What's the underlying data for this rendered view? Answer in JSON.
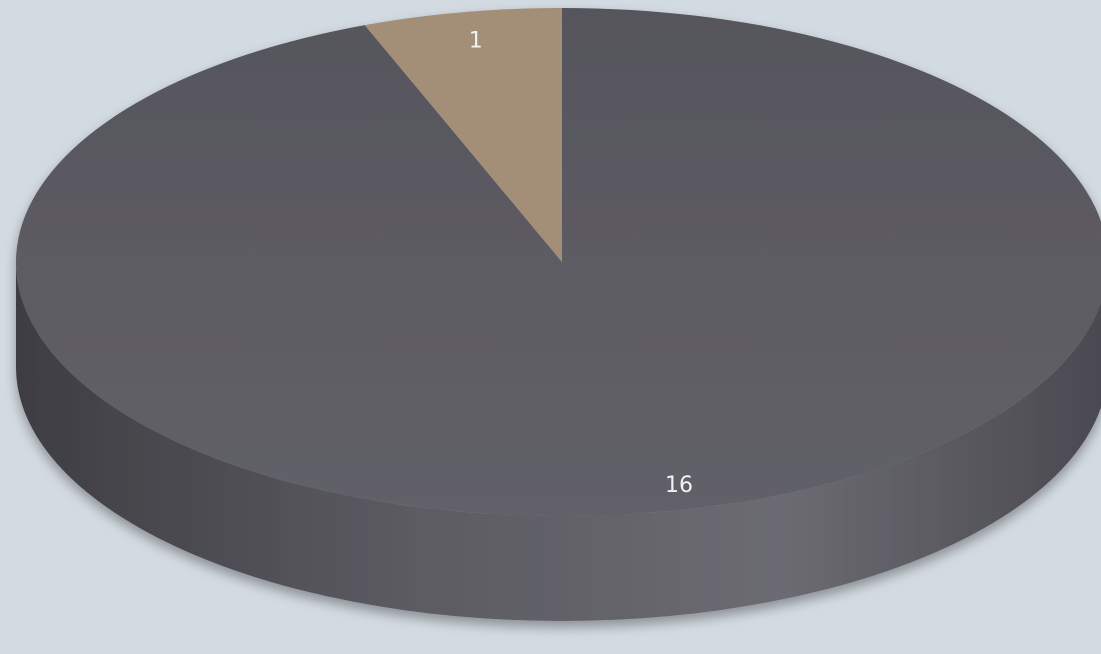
{
  "chart_data": {
    "type": "pie",
    "style": "3d",
    "title": "",
    "legend": "none",
    "slices": [
      {
        "value": 16,
        "label": "16",
        "color": "#5d5c63"
      },
      {
        "value": 1,
        "label": "1",
        "color": "#a38f78"
      }
    ]
  },
  "colors": {
    "background": "#d3dbe2",
    "side_shade_dark": "#3e3d43",
    "side_shade_light": "#6c6b72",
    "label_text": "#f2f2f2"
  }
}
